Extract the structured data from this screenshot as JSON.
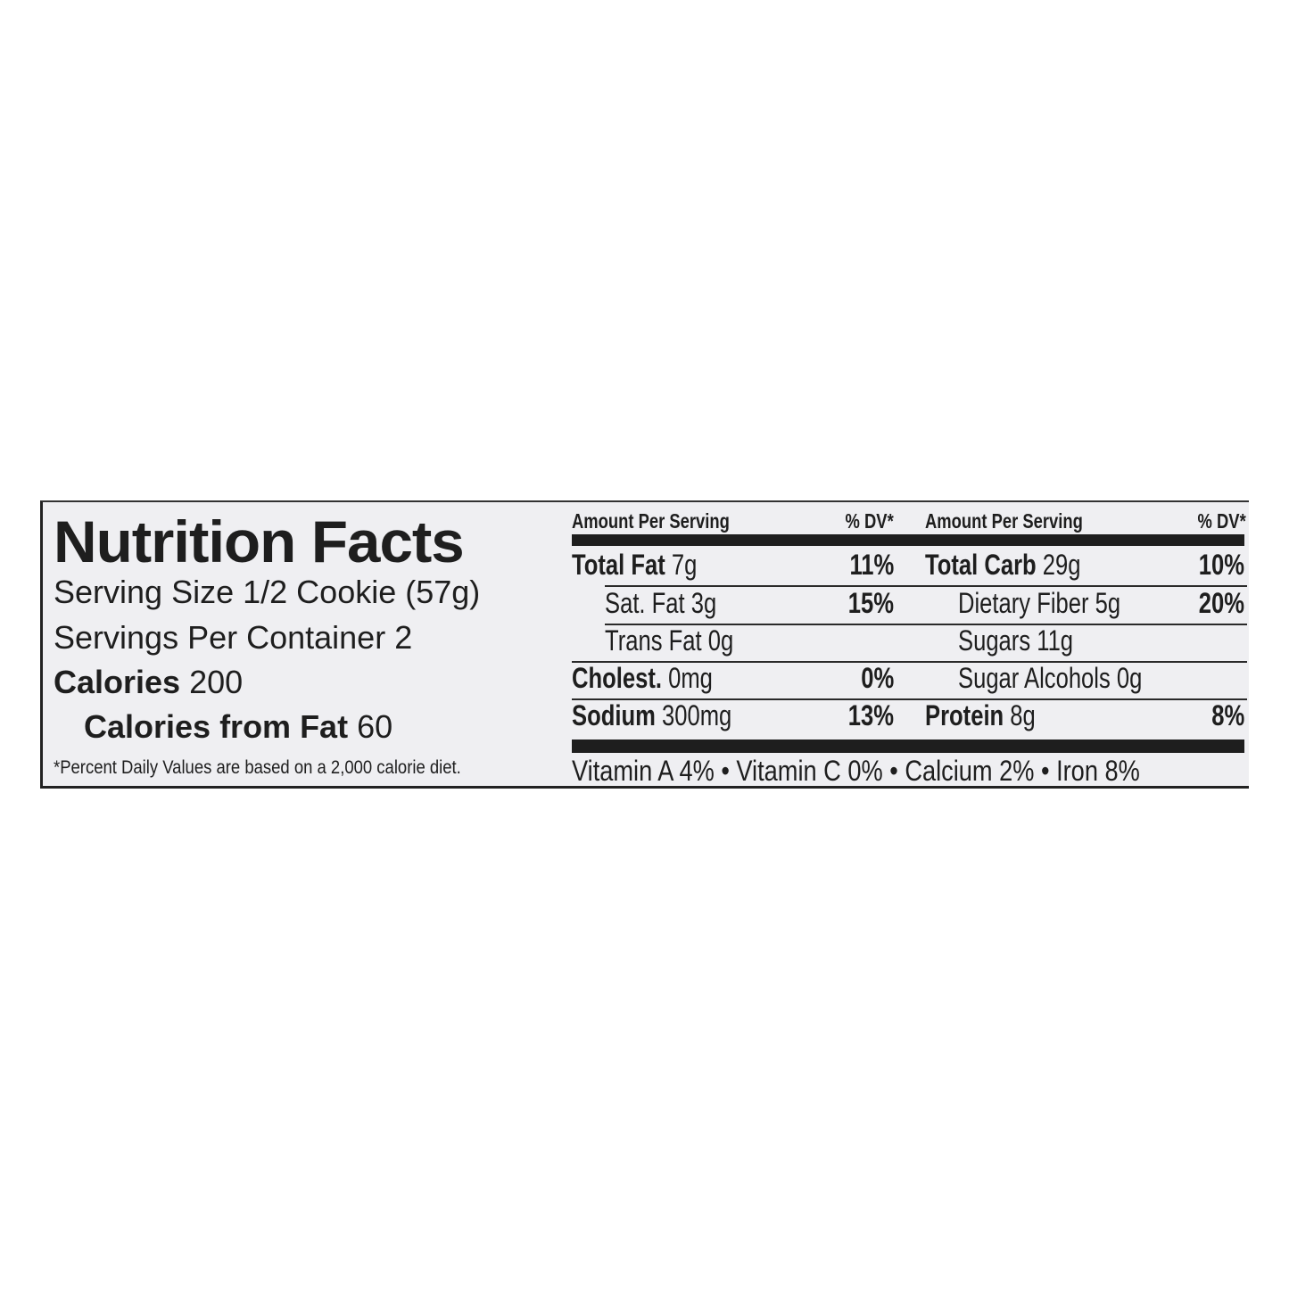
{
  "label": {
    "title": "Nutrition Facts",
    "serving_size_label": "Serving Size",
    "serving_size_value": "1/2 Cookie (57g)",
    "servings_label": "Servings Per Container",
    "servings_value": "2",
    "calories_label": "Calories",
    "calories_value": "200",
    "cal_fat_label": "Calories from Fat",
    "cal_fat_value": "60",
    "footnote": "*Percent Daily Values are based on a 2,000 calorie diet."
  },
  "table": {
    "left_header": {
      "amount": "Amount Per Serving",
      "dv": "% DV*"
    },
    "right_header": {
      "amount": "Amount Per Serving",
      "dv": "% DV*"
    },
    "left_rows": [
      {
        "name": "Total Fat",
        "amount": "7g",
        "dv": "11%"
      },
      {
        "name": "Sat. Fat",
        "amount": "3g",
        "dv": "15%"
      },
      {
        "name": "Trans Fat",
        "amount": "0g",
        "dv": ""
      },
      {
        "name": "Cholest.",
        "amount": "0mg",
        "dv": "0%"
      },
      {
        "name": "Sodium",
        "amount": "300mg",
        "dv": "13%"
      }
    ],
    "right_rows": [
      {
        "name": "Total Carb",
        "amount": "29g",
        "dv": "10%"
      },
      {
        "name": "Dietary Fiber",
        "amount": "5g",
        "dv": "20%"
      },
      {
        "name": "Sugars",
        "amount": "11g",
        "dv": ""
      },
      {
        "name": "Sugar Alcohols",
        "amount": "0g",
        "dv": ""
      },
      {
        "name": "Protein",
        "amount": "8g",
        "dv": "8%"
      }
    ],
    "vitamins": "Vitamin A 4% • Vitamin C 0% • Calcium 2% • Iron 8%"
  }
}
